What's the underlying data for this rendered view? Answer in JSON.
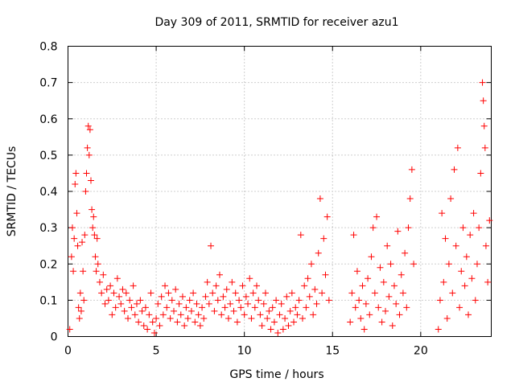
{
  "chart_data": {
    "type": "scatter",
    "title": "Day 309 of 2011, SRMTID for receiver azu1",
    "xlabel": "GPS time / hours",
    "ylabel": "SRMTID / TECUs",
    "xlim": [
      0,
      24
    ],
    "ylim": [
      0,
      0.8
    ],
    "xticks": [
      0,
      5,
      10,
      15,
      20
    ],
    "xtick_labels": [
      "0",
      "5",
      "10",
      "15",
      "20"
    ],
    "yticks": [
      0,
      0.1,
      0.2,
      0.3,
      0.4,
      0.5,
      0.6,
      0.7,
      0.8
    ],
    "ytick_labels": [
      "0",
      "0.1",
      "0.2",
      "0.3",
      "0.4",
      "0.5",
      "0.6",
      "0.7",
      "0.8"
    ],
    "grid": true,
    "marker": "+",
    "marker_color": "#ff0000",
    "series": [
      {
        "name": "azu1",
        "points": [
          [
            0.1,
            0.02
          ],
          [
            0.2,
            0.22
          ],
          [
            0.25,
            0.3
          ],
          [
            0.3,
            0.18
          ],
          [
            0.35,
            0.27
          ],
          [
            0.4,
            0.42
          ],
          [
            0.45,
            0.45
          ],
          [
            0.5,
            0.34
          ],
          [
            0.55,
            0.25
          ],
          [
            0.6,
            0.08
          ],
          [
            0.65,
            0.05
          ],
          [
            0.7,
            0.12
          ],
          [
            0.75,
            0.07
          ],
          [
            0.8,
            0.26
          ],
          [
            0.85,
            0.18
          ],
          [
            0.9,
            0.1
          ],
          [
            0.95,
            0.28
          ],
          [
            1.0,
            0.4
          ],
          [
            1.05,
            0.45
          ],
          [
            1.1,
            0.52
          ],
          [
            1.15,
            0.58
          ],
          [
            1.2,
            0.5
          ],
          [
            1.25,
            0.57
          ],
          [
            1.3,
            0.43
          ],
          [
            1.35,
            0.35
          ],
          [
            1.4,
            0.3
          ],
          [
            1.45,
            0.33
          ],
          [
            1.5,
            0.28
          ],
          [
            1.55,
            0.22
          ],
          [
            1.6,
            0.18
          ],
          [
            1.65,
            0.27
          ],
          [
            1.7,
            0.2
          ],
          [
            1.8,
            0.15
          ],
          [
            1.9,
            0.12
          ],
          [
            2.0,
            0.17
          ],
          [
            2.1,
            0.09
          ],
          [
            2.2,
            0.13
          ],
          [
            2.3,
            0.1
          ],
          [
            2.4,
            0.14
          ],
          [
            2.5,
            0.06
          ],
          [
            2.6,
            0.12
          ],
          [
            2.7,
            0.08
          ],
          [
            2.8,
            0.16
          ],
          [
            2.9,
            0.11
          ],
          [
            3.0,
            0.09
          ],
          [
            3.1,
            0.13
          ],
          [
            3.2,
            0.07
          ],
          [
            3.3,
            0.12
          ],
          [
            3.4,
            0.05
          ],
          [
            3.5,
            0.1
          ],
          [
            3.6,
            0.08
          ],
          [
            3.7,
            0.14
          ],
          [
            3.8,
            0.06
          ],
          [
            3.9,
            0.09
          ],
          [
            4.0,
            0.04
          ],
          [
            4.1,
            0.1
          ],
          [
            4.2,
            0.07
          ],
          [
            4.3,
            0.03
          ],
          [
            4.4,
            0.08
          ],
          [
            4.5,
            0.02
          ],
          [
            4.6,
            0.06
          ],
          [
            4.7,
            0.12
          ],
          [
            4.8,
            0.04
          ],
          [
            4.9,
            0.01
          ],
          [
            5.0,
            0.05
          ],
          [
            5.1,
            0.09
          ],
          [
            5.2,
            0.03
          ],
          [
            5.3,
            0.11
          ],
          [
            5.4,
            0.06
          ],
          [
            5.5,
            0.14
          ],
          [
            5.6,
            0.08
          ],
          [
            5.7,
            0.12
          ],
          [
            5.8,
            0.05
          ],
          [
            5.9,
            0.1
          ],
          [
            6.0,
            0.07
          ],
          [
            6.1,
            0.13
          ],
          [
            6.2,
            0.04
          ],
          [
            6.3,
            0.09
          ],
          [
            6.4,
            0.06
          ],
          [
            6.5,
            0.11
          ],
          [
            6.6,
            0.03
          ],
          [
            6.7,
            0.08
          ],
          [
            6.8,
            0.05
          ],
          [
            6.9,
            0.1
          ],
          [
            7.0,
            0.07
          ],
          [
            7.1,
            0.12
          ],
          [
            7.2,
            0.04
          ],
          [
            7.3,
            0.09
          ],
          [
            7.4,
            0.06
          ],
          [
            7.5,
            0.03
          ],
          [
            7.6,
            0.08
          ],
          [
            7.7,
            0.05
          ],
          [
            7.8,
            0.11
          ],
          [
            7.9,
            0.15
          ],
          [
            8.0,
            0.09
          ],
          [
            8.1,
            0.25
          ],
          [
            8.2,
            0.12
          ],
          [
            8.3,
            0.07
          ],
          [
            8.4,
            0.14
          ],
          [
            8.5,
            0.1
          ],
          [
            8.6,
            0.17
          ],
          [
            8.7,
            0.06
          ],
          [
            8.8,
            0.11
          ],
          [
            8.9,
            0.08
          ],
          [
            9.0,
            0.13
          ],
          [
            9.1,
            0.05
          ],
          [
            9.2,
            0.09
          ],
          [
            9.3,
            0.15
          ],
          [
            9.4,
            0.07
          ],
          [
            9.5,
            0.12
          ],
          [
            9.6,
            0.04
          ],
          [
            9.7,
            0.1
          ],
          [
            9.8,
            0.08
          ],
          [
            9.9,
            0.14
          ],
          [
            10.0,
            0.06
          ],
          [
            10.1,
            0.11
          ],
          [
            10.2,
            0.09
          ],
          [
            10.3,
            0.16
          ],
          [
            10.4,
            0.05
          ],
          [
            10.5,
            0.12
          ],
          [
            10.6,
            0.08
          ],
          [
            10.7,
            0.14
          ],
          [
            10.8,
            0.1
          ],
          [
            10.9,
            0.06
          ],
          [
            11.0,
            0.03
          ],
          [
            11.1,
            0.09
          ],
          [
            11.2,
            0.12
          ],
          [
            11.3,
            0.05
          ],
          [
            11.4,
            0.07
          ],
          [
            11.5,
            0.02
          ],
          [
            11.6,
            0.08
          ],
          [
            11.7,
            0.04
          ],
          [
            11.8,
            0.1
          ],
          [
            11.9,
            0.01
          ],
          [
            12.0,
            0.06
          ],
          [
            12.1,
            0.09
          ],
          [
            12.2,
            0.02
          ],
          [
            12.3,
            0.05
          ],
          [
            12.4,
            0.11
          ],
          [
            12.5,
            0.03
          ],
          [
            12.6,
            0.07
          ],
          [
            12.7,
            0.12
          ],
          [
            12.8,
            0.04
          ],
          [
            12.9,
            0.08
          ],
          [
            13.0,
            0.06
          ],
          [
            13.1,
            0.1
          ],
          [
            13.2,
            0.28
          ],
          [
            13.3,
            0.05
          ],
          [
            13.4,
            0.14
          ],
          [
            13.5,
            0.08
          ],
          [
            13.6,
            0.16
          ],
          [
            13.7,
            0.11
          ],
          [
            13.8,
            0.2
          ],
          [
            13.9,
            0.06
          ],
          [
            14.0,
            0.13
          ],
          [
            14.1,
            0.09
          ],
          [
            14.2,
            0.23
          ],
          [
            14.3,
            0.38
          ],
          [
            14.4,
            0.12
          ],
          [
            14.5,
            0.27
          ],
          [
            14.6,
            0.17
          ],
          [
            14.7,
            0.33
          ],
          [
            14.8,
            0.1
          ],
          [
            16.0,
            0.04
          ],
          [
            16.1,
            0.12
          ],
          [
            16.2,
            0.28
          ],
          [
            16.3,
            0.08
          ],
          [
            16.4,
            0.18
          ],
          [
            16.5,
            0.1
          ],
          [
            16.6,
            0.05
          ],
          [
            16.7,
            0.14
          ],
          [
            16.8,
            0.02
          ],
          [
            16.9,
            0.09
          ],
          [
            17.0,
            0.16
          ],
          [
            17.1,
            0.06
          ],
          [
            17.2,
            0.22
          ],
          [
            17.3,
            0.3
          ],
          [
            17.4,
            0.12
          ],
          [
            17.5,
            0.33
          ],
          [
            17.6,
            0.08
          ],
          [
            17.7,
            0.19
          ],
          [
            17.8,
            0.04
          ],
          [
            17.9,
            0.15
          ],
          [
            18.0,
            0.07
          ],
          [
            18.1,
            0.25
          ],
          [
            18.2,
            0.11
          ],
          [
            18.3,
            0.2
          ],
          [
            18.4,
            0.03
          ],
          [
            18.5,
            0.14
          ],
          [
            18.6,
            0.09
          ],
          [
            18.7,
            0.29
          ],
          [
            18.8,
            0.06
          ],
          [
            18.9,
            0.17
          ],
          [
            19.0,
            0.12
          ],
          [
            19.1,
            0.23
          ],
          [
            19.2,
            0.08
          ],
          [
            19.3,
            0.3
          ],
          [
            19.4,
            0.38
          ],
          [
            19.5,
            0.46
          ],
          [
            19.6,
            0.2
          ],
          [
            21.0,
            0.02
          ],
          [
            21.1,
            0.1
          ],
          [
            21.2,
            0.34
          ],
          [
            21.3,
            0.15
          ],
          [
            21.4,
            0.27
          ],
          [
            21.5,
            0.05
          ],
          [
            21.6,
            0.2
          ],
          [
            21.7,
            0.38
          ],
          [
            21.8,
            0.12
          ],
          [
            21.9,
            0.46
          ],
          [
            22.0,
            0.25
          ],
          [
            22.1,
            0.52
          ],
          [
            22.2,
            0.08
          ],
          [
            22.3,
            0.18
          ],
          [
            22.4,
            0.3
          ],
          [
            22.5,
            0.14
          ],
          [
            22.6,
            0.22
          ],
          [
            22.7,
            0.06
          ],
          [
            22.8,
            0.28
          ],
          [
            22.9,
            0.16
          ],
          [
            23.0,
            0.34
          ],
          [
            23.1,
            0.1
          ],
          [
            23.2,
            0.2
          ],
          [
            23.3,
            0.3
          ],
          [
            23.4,
            0.45
          ],
          [
            23.5,
            0.7
          ],
          [
            23.55,
            0.65
          ],
          [
            23.6,
            0.58
          ],
          [
            23.65,
            0.52
          ],
          [
            23.7,
            0.25
          ],
          [
            23.8,
            0.15
          ],
          [
            23.9,
            0.32
          ]
        ]
      }
    ]
  }
}
